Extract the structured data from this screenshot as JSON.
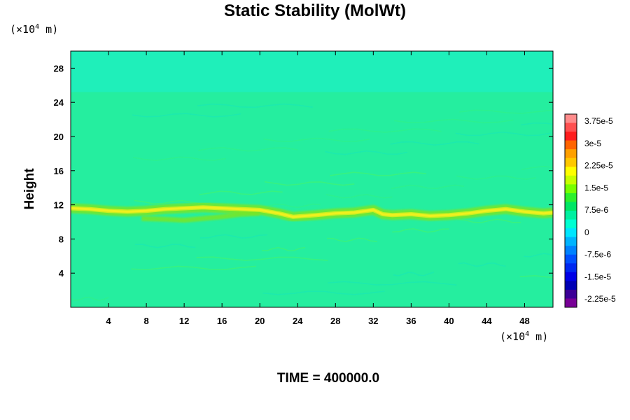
{
  "title": "Static Stability (MolWt)",
  "time_label": "TIME = 400000.0",
  "y_axis": {
    "label": "Height",
    "unit_prefix": "(×10",
    "unit_exp": "4",
    "unit_suffix": " m)"
  },
  "x_axis": {
    "unit_prefix": "(×10",
    "unit_exp": "4",
    "unit_suffix": " m)"
  },
  "colors": {
    "background_field": "#25ee9f",
    "upper_field": "#1fefba",
    "band_core": "#f0f01e",
    "band_edge": "#78e628",
    "frame": "#000000"
  },
  "chart_data": {
    "type": "heatmap",
    "title": "Static Stability (MolWt)",
    "ylabel": "Height",
    "xlim": [
      0,
      51
    ],
    "ylim": [
      0,
      30
    ],
    "x_ticks": [
      4,
      8,
      12,
      16,
      20,
      24,
      28,
      32,
      36,
      40,
      44,
      48
    ],
    "y_ticks": [
      4,
      8,
      12,
      16,
      20,
      24,
      28
    ],
    "colorbar": {
      "labels": [
        "3.75e-5",
        "3e-5",
        "2.25e-5",
        "1.5e-5",
        "7.5e-6",
        "0",
        "-7.5e-6",
        "-1.5e-5",
        "-2.25e-5"
      ],
      "colors": [
        "#ff8c8c",
        "#ff5050",
        "#ff1e1e",
        "#ff6400",
        "#ffa000",
        "#ffc800",
        "#ffff00",
        "#c8ff00",
        "#78ff00",
        "#2cf02c",
        "#00e664",
        "#00f0a0",
        "#00ffd2",
        "#00e6ff",
        "#00b4ff",
        "#0082ff",
        "#0050ff",
        "#0028f0",
        "#0000e6",
        "#0000b4",
        "#3c0096",
        "#780096"
      ]
    },
    "band_centerline": [
      [
        0,
        11.6
      ],
      [
        2,
        11.5
      ],
      [
        4,
        11.3
      ],
      [
        6,
        11.2
      ],
      [
        8,
        11.3
      ],
      [
        10,
        11.5
      ],
      [
        12,
        11.6
      ],
      [
        14,
        11.7
      ],
      [
        16,
        11.6
      ],
      [
        18,
        11.5
      ],
      [
        20,
        11.4
      ],
      [
        22,
        11.0
      ],
      [
        23.5,
        10.6
      ],
      [
        26,
        10.8
      ],
      [
        28,
        11.0
      ],
      [
        30,
        11.1
      ],
      [
        32,
        11.4
      ],
      [
        33,
        10.9
      ],
      [
        34,
        10.8
      ],
      [
        36,
        10.9
      ],
      [
        38,
        10.7
      ],
      [
        40,
        10.8
      ],
      [
        42,
        11.0
      ],
      [
        44,
        11.3
      ],
      [
        46,
        11.5
      ],
      [
        48,
        11.2
      ],
      [
        50,
        11.0
      ],
      [
        51,
        11.1
      ]
    ],
    "lower_branch": [
      [
        7.5,
        10.4
      ],
      [
        10,
        10.3
      ],
      [
        12,
        10.2
      ],
      [
        14,
        10.4
      ],
      [
        16,
        10.6
      ],
      [
        18,
        10.9
      ],
      [
        20,
        11.0
      ]
    ],
    "upper_layer_boundary": 25.2
  }
}
